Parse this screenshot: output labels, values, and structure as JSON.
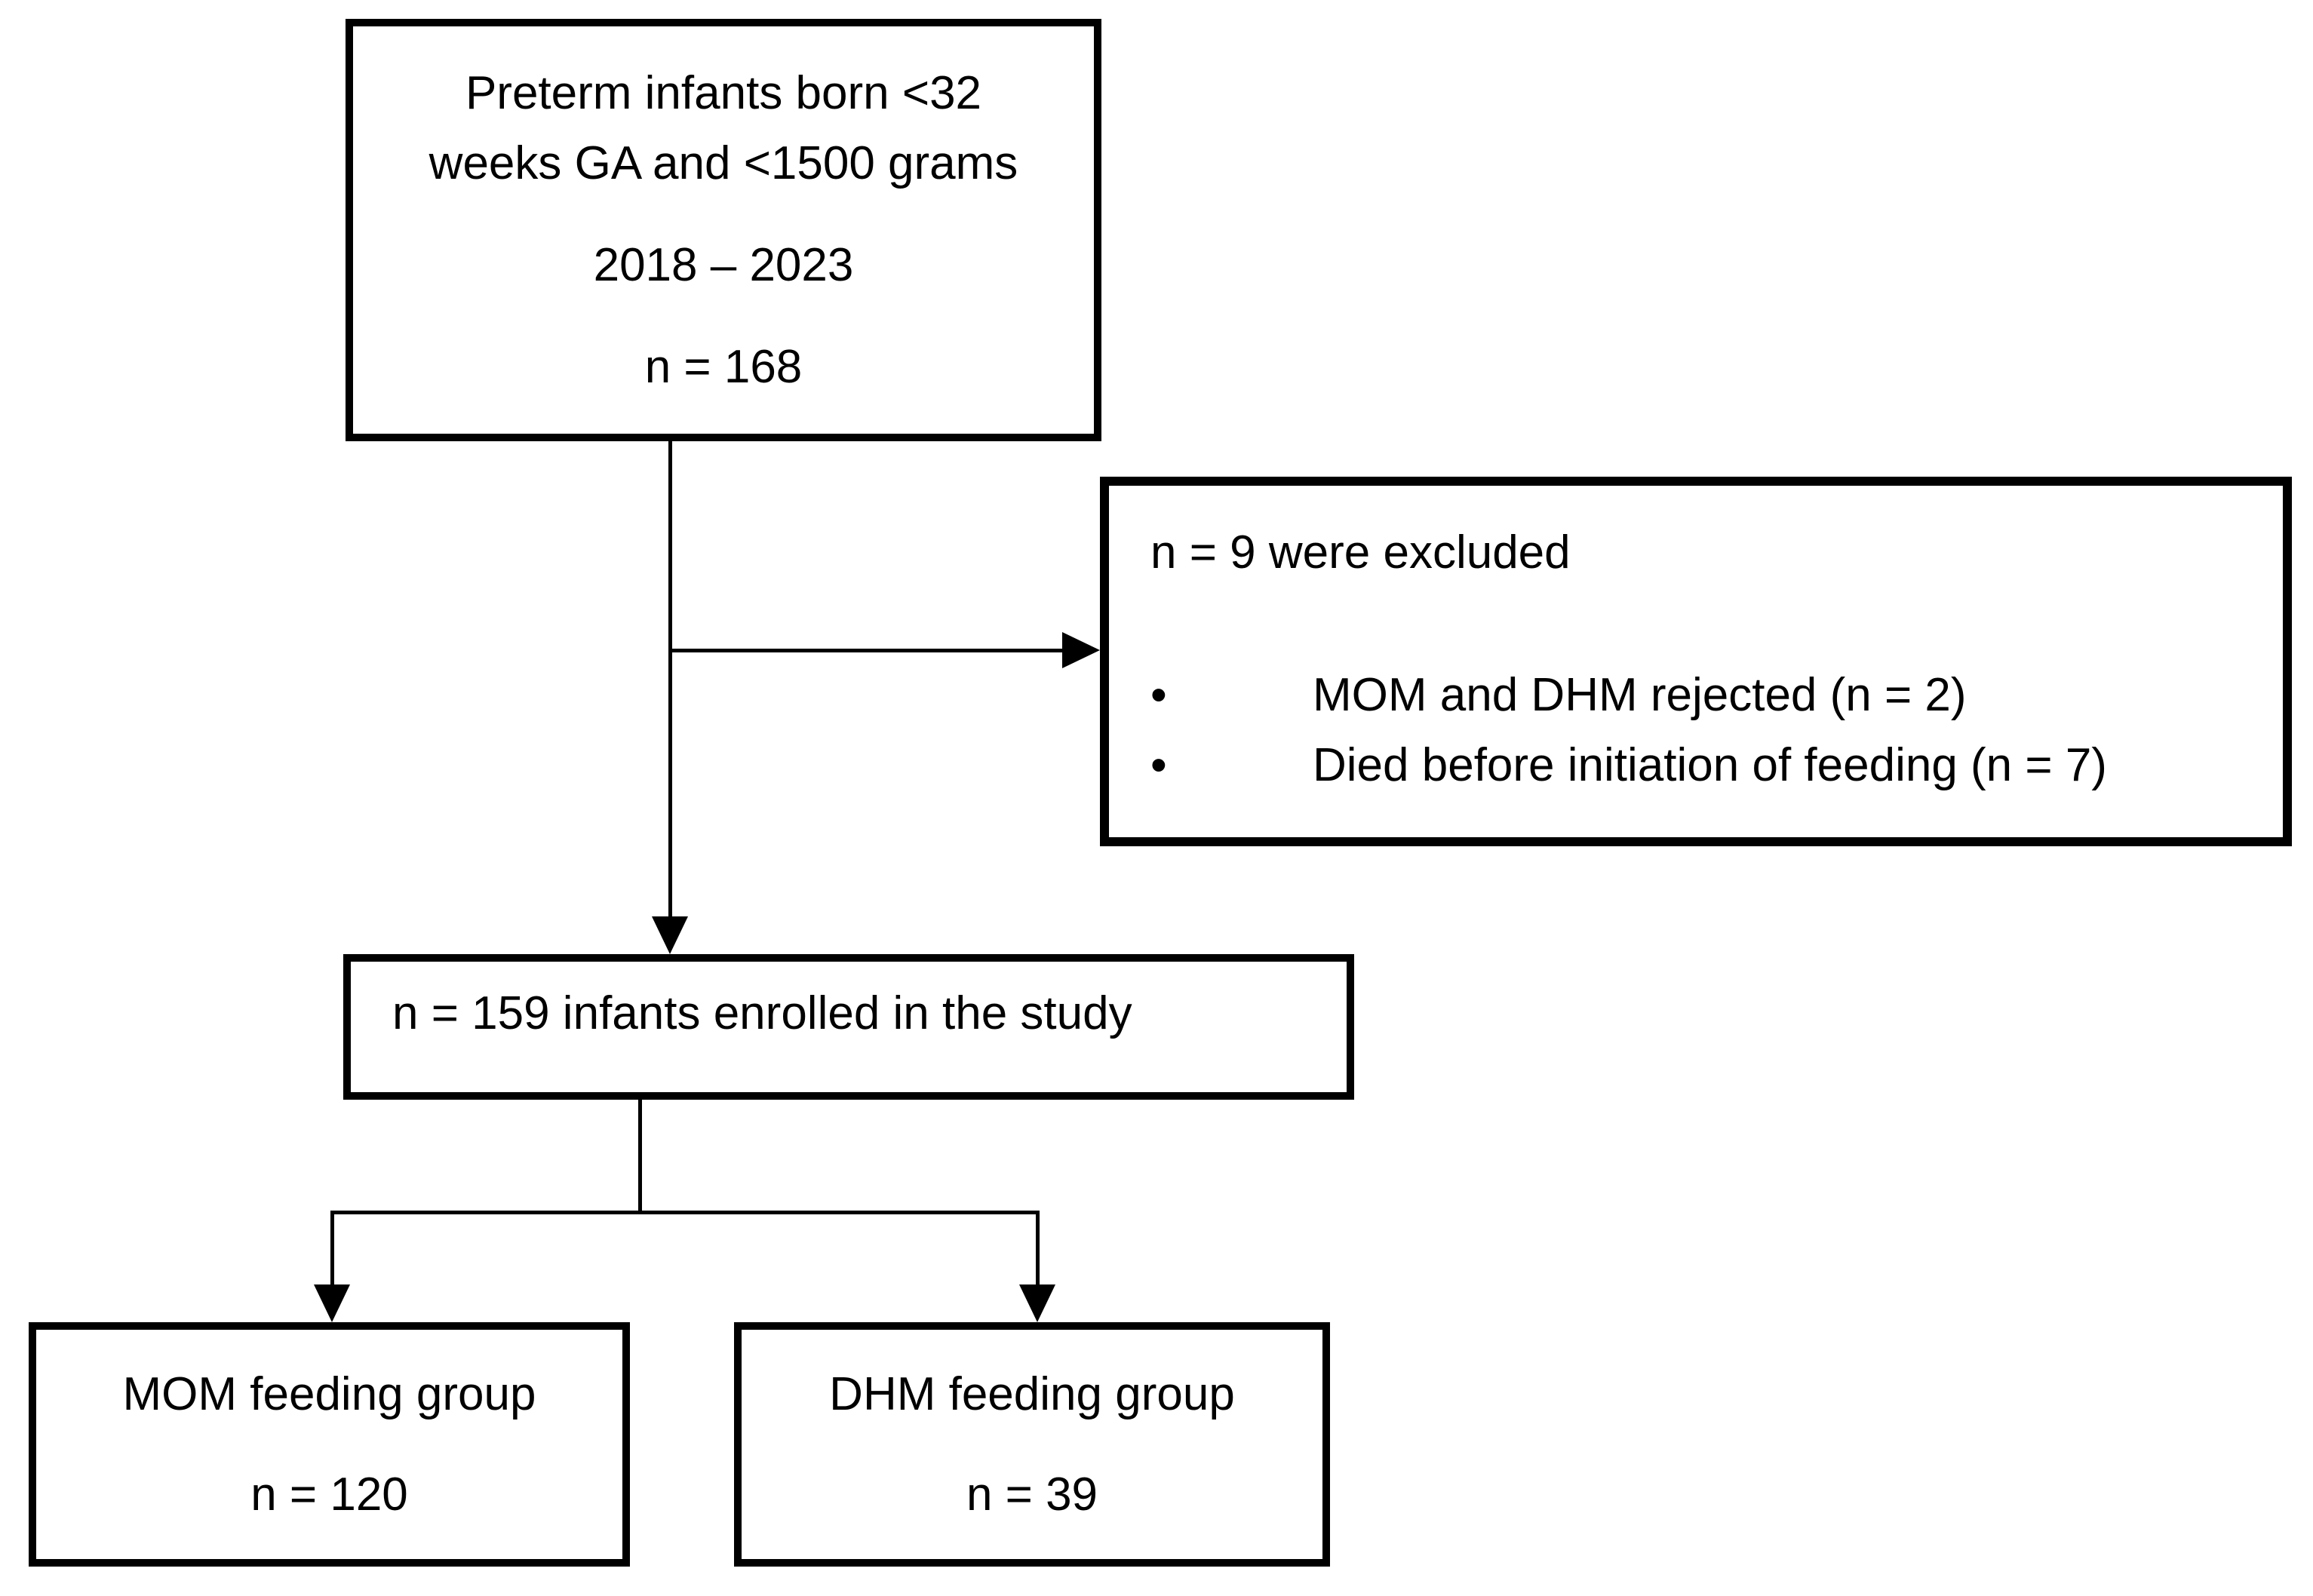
{
  "diagram": {
    "top_box": {
      "line1": "Preterm infants born <32",
      "line2": "weeks GA and <1500 grams",
      "period": "2018 – 2023",
      "n": "n = 168"
    },
    "exclusion_box": {
      "header": "n = 9 were excluded",
      "bullet_glyph": "•",
      "bullets": [
        "MOM and DHM rejected (n = 2)",
        "Died before initiation of feeding (n = 7)"
      ]
    },
    "enrolled_box": {
      "text": "n = 159 infants enrolled in the study"
    },
    "mom_box": {
      "title": "MOM feeding group",
      "n": "n = 120"
    },
    "dhm_box": {
      "title": "DHM feeding group",
      "n": "n = 39"
    },
    "colors": {
      "line": "#000000",
      "background": "#ffffff",
      "text": "#000000"
    }
  }
}
